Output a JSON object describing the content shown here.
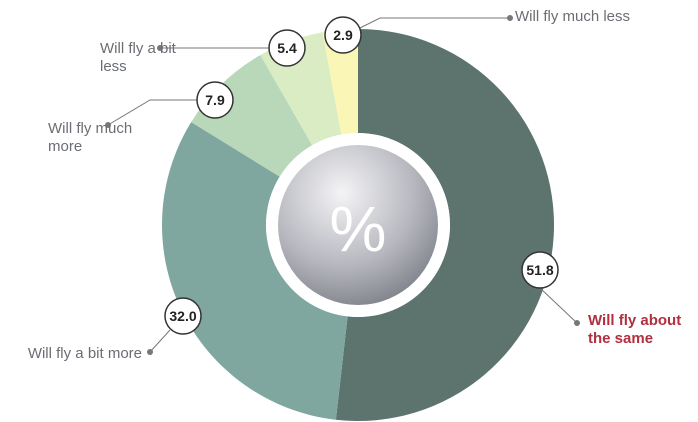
{
  "chart_data": {
    "type": "donut",
    "center_label": "%",
    "categories": [
      "Will fly about the same",
      "Will fly a bit more",
      "Will fly much more",
      "Will fly a bit less",
      "Will fly much less"
    ],
    "values": [
      51.8,
      32.0,
      7.9,
      5.4,
      2.9
    ],
    "value_labels": [
      "51.8",
      "32.0",
      "7.9",
      "5.4",
      "2.9"
    ],
    "colors": [
      "#5c736e",
      "#7fa7a0",
      "#b9d8b9",
      "#d9ecc3",
      "#faf6b6"
    ],
    "highlight": 0,
    "highlight_color": "#b0303f"
  }
}
